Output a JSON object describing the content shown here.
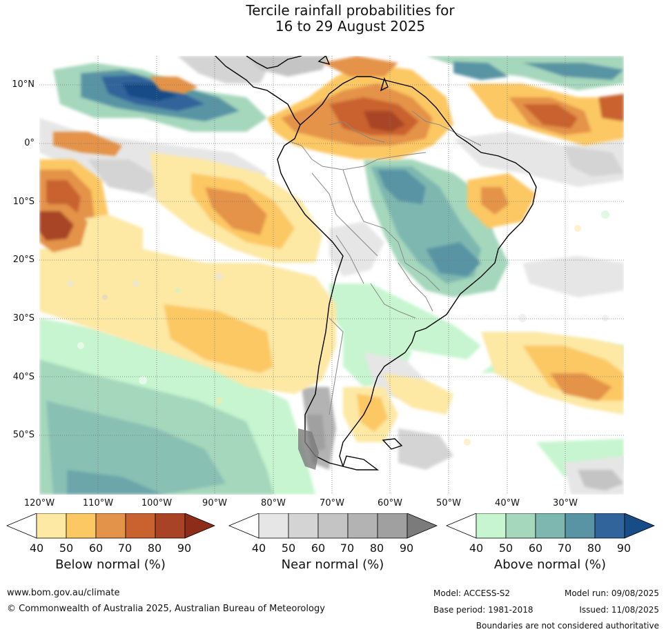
{
  "title": {
    "line1": "Tercile rainfall probabilities for",
    "line2": "16 to 29 August 2025"
  },
  "map": {
    "lat_labels": [
      "10°N",
      "0°",
      "10°S",
      "20°S",
      "30°S",
      "40°S",
      "50°S"
    ],
    "lon_labels": [
      "120°W",
      "110°W",
      "100°W",
      "90°W",
      "80°W",
      "70°W",
      "60°W",
      "50°W",
      "40°W",
      "30°W"
    ],
    "extent": {
      "lon": [
        -120,
        -20
      ],
      "lat": [
        -60,
        15
      ]
    },
    "grid": "dotted"
  },
  "legends": {
    "below": {
      "title": "Below normal (%)",
      "ticks": [
        "40",
        "50",
        "60",
        "70",
        "80",
        "90"
      ],
      "colors": [
        "#ffffff",
        "#fde8a4",
        "#fcc863",
        "#e4934a",
        "#c9622f",
        "#a84425",
        "#8e2c1a"
      ]
    },
    "near": {
      "title": "Near normal (%)",
      "ticks": [
        "40",
        "50",
        "60",
        "70",
        "80",
        "90"
      ],
      "colors": [
        "#ffffff",
        "#e6e6e6",
        "#d4d4d4",
        "#c4c4c4",
        "#b3b3b3",
        "#a0a0a0",
        "#7b7b7b"
      ]
    },
    "above": {
      "title": "Above normal (%)",
      "ticks": [
        "40",
        "50",
        "60",
        "70",
        "80",
        "90"
      ],
      "colors": [
        "#ffffff",
        "#c6f5cf",
        "#a5d7bc",
        "#7eb7b0",
        "#5894a4",
        "#30649a",
        "#174c87"
      ]
    }
  },
  "footer": {
    "website": "www.bom.gov.au/climate",
    "copyright": "© Commonwealth of Australia 2025, Australian Bureau of Meteorology",
    "model": "Model: ACCESS-S2",
    "model_run": "Model run: 09/08/2025",
    "base_period": "Base period: 1981-2018",
    "issued": "Issued: 11/08/2025",
    "disclaimer": "Boundaries are not considered authoritative"
  }
}
